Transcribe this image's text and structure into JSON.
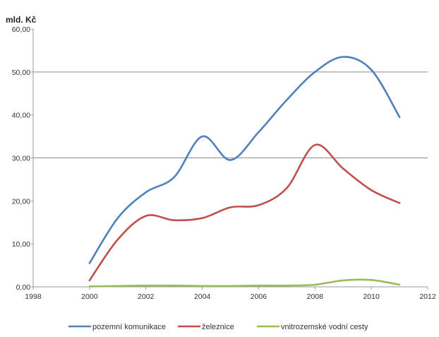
{
  "chart_data": {
    "type": "line",
    "title": "",
    "xlabel": "",
    "ylabel": "mld. Kč",
    "xlim": [
      1998,
      2012
    ],
    "ylim": [
      0,
      60
    ],
    "x_ticks": [
      "1998",
      "2000",
      "2002",
      "2004",
      "2006",
      "2008",
      "2010",
      "2012"
    ],
    "y_ticks": [
      "0,00",
      "10,00",
      "20,00",
      "30,00",
      "40,00",
      "50,00",
      "60,00"
    ],
    "grid_lines_at": [
      30,
      50
    ],
    "legend_position": "bottom",
    "series": [
      {
        "name": "pozemní komunikace",
        "color": "#4f81bd",
        "x": [
          2000,
          2001,
          2002,
          2003,
          2004,
          2005,
          2006,
          2007,
          2008,
          2009,
          2010,
          2011
        ],
        "values": [
          5.5,
          16.0,
          22.0,
          25.5,
          35.0,
          29.5,
          36.0,
          43.5,
          50.0,
          53.5,
          50.5,
          39.5
        ]
      },
      {
        "name": "železnice",
        "color": "#c0504d",
        "x": [
          2000,
          2001,
          2002,
          2003,
          2004,
          2005,
          2006,
          2007,
          2008,
          2009,
          2010,
          2011
        ],
        "values": [
          1.5,
          11.0,
          16.5,
          15.5,
          16.0,
          18.5,
          19.0,
          23.0,
          33.0,
          27.5,
          22.5,
          19.5
        ]
      },
      {
        "name": "vnitrozemské vodní cesty",
        "color": "#9bbb59",
        "x": [
          2000,
          2001,
          2002,
          2003,
          2004,
          2005,
          2006,
          2007,
          2008,
          2009,
          2010,
          2011
        ],
        "values": [
          0.1,
          0.2,
          0.3,
          0.3,
          0.2,
          0.2,
          0.3,
          0.3,
          0.5,
          1.5,
          1.6,
          0.5
        ]
      }
    ]
  }
}
